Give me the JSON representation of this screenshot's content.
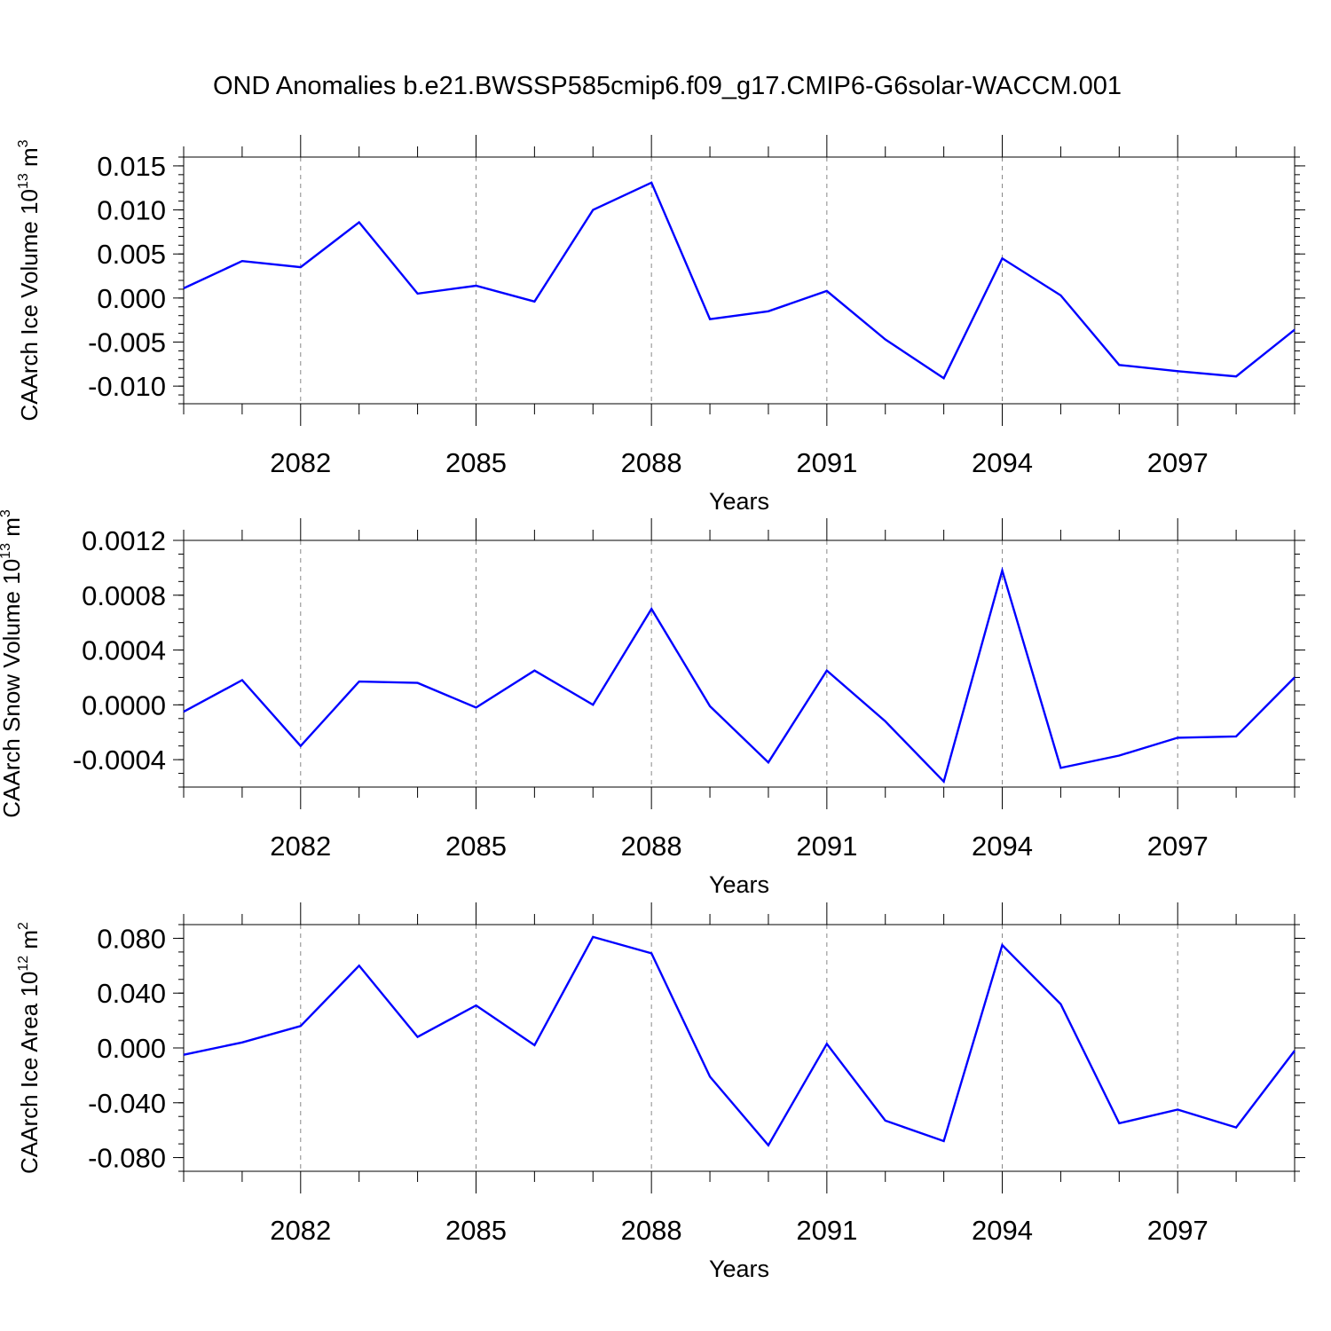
{
  "title": "OND Anomalies b.e21.BWSSP585cmip6.f09_g17.CMIP6-G6solar-WACCM.001",
  "series_color": "#0000ff",
  "chart_data": [
    {
      "type": "line",
      "ylabel": {
        "main": "CAArch Ice Volume 10",
        "sup": "13",
        "unit": " m",
        "unit_sup": "3"
      },
      "xlabel": "Years",
      "xlim": [
        2080,
        2099
      ],
      "ylim": [
        -0.012,
        0.016
      ],
      "x": [
        2080,
        2081,
        2082,
        2083,
        2084,
        2085,
        2086,
        2087,
        2088,
        2089,
        2090,
        2091,
        2092,
        2093,
        2094,
        2095,
        2096,
        2097,
        2098,
        2099
      ],
      "y": [
        0.0011,
        0.0042,
        0.0035,
        0.0086,
        0.0005,
        0.0014,
        -0.0004,
        0.01,
        0.0131,
        -0.0024,
        -0.0015,
        0.0008,
        -0.0047,
        -0.0091,
        0.0045,
        0.0003,
        -0.0076,
        -0.0083,
        -0.0089,
        -0.0036
      ],
      "yticks": [
        -0.01,
        -0.005,
        0.0,
        0.005,
        0.01,
        0.015
      ],
      "ytick_labels": [
        "-0.010",
        "-0.005",
        "0.000",
        "0.005",
        "0.010",
        "0.015"
      ],
      "ytick_minor_step": 0.001,
      "xticks": [
        2082,
        2085,
        2088,
        2091,
        2094,
        2097
      ],
      "xtick_labels": [
        "2082",
        "2085",
        "2088",
        "2091",
        "2094",
        "2097"
      ]
    },
    {
      "type": "line",
      "ylabel": {
        "main": "CAArch Snow Volume 10",
        "sup": "13",
        "unit": " m",
        "unit_sup": "3"
      },
      "xlabel": "Years",
      "xlim": [
        2080,
        2099
      ],
      "ylim": [
        -0.0006,
        0.0012
      ],
      "x": [
        2080,
        2081,
        2082,
        2083,
        2084,
        2085,
        2086,
        2087,
        2088,
        2089,
        2090,
        2091,
        2092,
        2093,
        2094,
        2095,
        2096,
        2097,
        2098,
        2099
      ],
      "y": [
        -5e-05,
        0.00018,
        -0.0003,
        0.00017,
        0.00016,
        -2e-05,
        0.00025,
        0.0,
        0.0007,
        -1e-05,
        -0.00042,
        0.00025,
        -0.00012,
        -0.00056,
        0.00098,
        -0.00046,
        -0.00037,
        -0.00024,
        -0.00023,
        0.0002
      ],
      "yticks": [
        -0.0004,
        0.0,
        0.0004,
        0.0008,
        0.0012
      ],
      "ytick_labels": [
        "-0.0004",
        "0.0000",
        "0.0004",
        "0.0008",
        "0.0012"
      ],
      "ytick_minor_step": 0.0001,
      "xticks": [
        2082,
        2085,
        2088,
        2091,
        2094,
        2097
      ],
      "xtick_labels": [
        "2082",
        "2085",
        "2088",
        "2091",
        "2094",
        "2097"
      ]
    },
    {
      "type": "line",
      "ylabel": {
        "main": "CAArch Ice Area 10",
        "sup": "12",
        "unit": " m",
        "unit_sup": "2"
      },
      "xlabel": "Years",
      "xlim": [
        2080,
        2099
      ],
      "ylim": [
        -0.09,
        0.09
      ],
      "x": [
        2080,
        2081,
        2082,
        2083,
        2084,
        2085,
        2086,
        2087,
        2088,
        2089,
        2090,
        2091,
        2092,
        2093,
        2094,
        2095,
        2096,
        2097,
        2098,
        2099
      ],
      "y": [
        -0.005,
        0.004,
        0.016,
        0.06,
        0.008,
        0.031,
        0.002,
        0.081,
        0.069,
        -0.021,
        -0.071,
        0.003,
        -0.053,
        -0.068,
        0.075,
        0.032,
        -0.055,
        -0.045,
        -0.058,
        -0.002
      ],
      "yticks": [
        -0.08,
        -0.04,
        0.0,
        0.04,
        0.08
      ],
      "ytick_labels": [
        "-0.080",
        "-0.040",
        "0.000",
        "0.040",
        "0.080"
      ],
      "ytick_minor_step": 0.01,
      "xticks": [
        2082,
        2085,
        2088,
        2091,
        2094,
        2097
      ],
      "xtick_labels": [
        "2082",
        "2085",
        "2088",
        "2091",
        "2094",
        "2097"
      ]
    }
  ]
}
